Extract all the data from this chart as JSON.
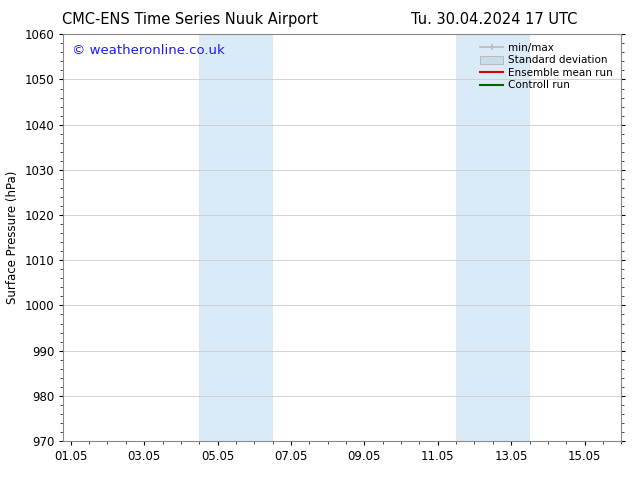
{
  "title_left": "CMC-ENS Time Series Nuuk Airport",
  "title_right": "Tu. 30.04.2024 17 UTC",
  "ylabel": "Surface Pressure (hPa)",
  "ylim": [
    970,
    1060
  ],
  "yticks": [
    970,
    980,
    990,
    1000,
    1010,
    1020,
    1030,
    1040,
    1050,
    1060
  ],
  "xtick_labels": [
    "01.05",
    "03.05",
    "05.05",
    "07.05",
    "09.05",
    "11.05",
    "13.05",
    "15.05"
  ],
  "xtick_positions": [
    0,
    2,
    4,
    6,
    8,
    10,
    12,
    14
  ],
  "xlim_start": -0.2,
  "xlim_end": 15.0,
  "shaded_regions": [
    {
      "xmin": 3.5,
      "xmax": 5.5,
      "color": "#daeaf7"
    },
    {
      "xmin": 10.5,
      "xmax": 12.5,
      "color": "#daeaf7"
    }
  ],
  "background_color": "#ffffff",
  "watermark": "© weatheronline.co.uk",
  "watermark_color": "#1a1aff",
  "grid_color": "#cccccc",
  "spine_color": "#888888",
  "title_fontsize": 10.5,
  "tick_fontsize": 8.5,
  "ylabel_fontsize": 8.5,
  "watermark_fontsize": 9.5,
  "legend_fontsize": 7.5
}
